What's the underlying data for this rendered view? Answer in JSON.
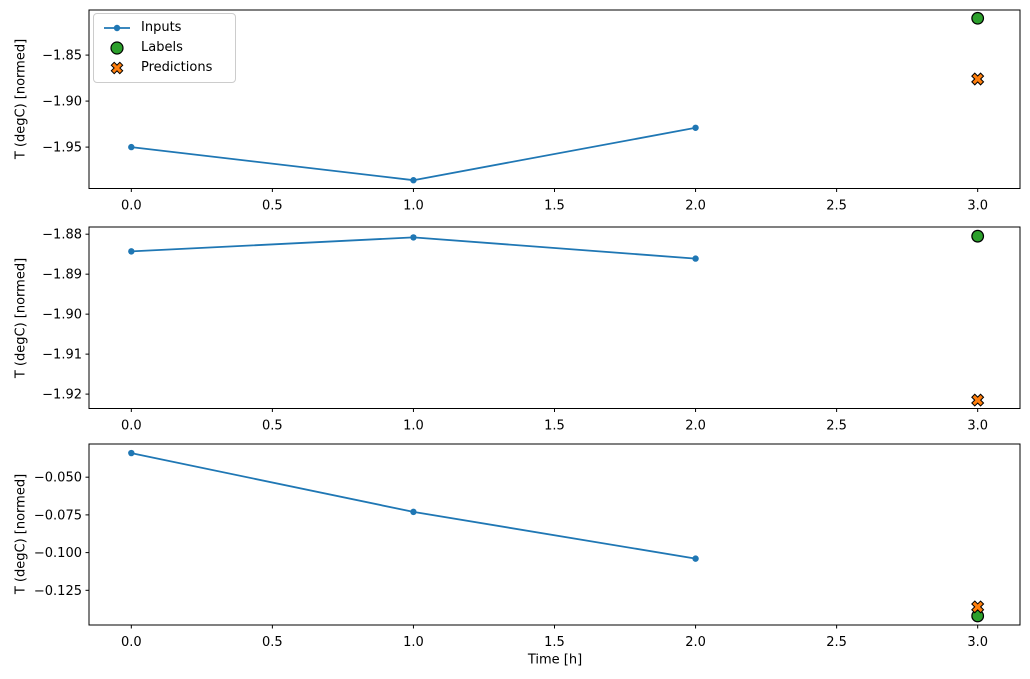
{
  "figure": {
    "background": "#ffffff",
    "spine_color": "#000000",
    "text_color": "#000000"
  },
  "legend": {
    "position": "upper-left",
    "items": [
      {
        "label": "Inputs",
        "marker": "line-dot",
        "color": "#1f77b4",
        "edge_color": "#1f77b4"
      },
      {
        "label": "Labels",
        "marker": "circle",
        "color": "#2ca02c",
        "edge_color": "#000000"
      },
      {
        "label": "Predictions",
        "marker": "x",
        "color": "#ff7f0e",
        "edge_color": "#000000"
      }
    ]
  },
  "chart_data": [
    {
      "type": "line",
      "title": "",
      "xlabel": "",
      "ylabel": "T (degC) [normed]",
      "grid": false,
      "legend_visible": true,
      "xlim": [
        -0.15,
        3.15
      ],
      "ylim": [
        -1.995,
        -1.801
      ],
      "xticks": {
        "values": [
          0.0,
          0.5,
          1.0,
          1.5,
          2.0,
          2.5,
          3.0
        ],
        "labels": [
          "0.0",
          "0.5",
          "1.0",
          "1.5",
          "2.0",
          "2.5",
          "3.0"
        ]
      },
      "yticks": {
        "values": [
          -1.85,
          -1.9,
          -1.95
        ],
        "labels": [
          "−1.85",
          "−1.90",
          "−1.95"
        ]
      },
      "series": [
        {
          "name": "Inputs",
          "kind": "line",
          "marker": "dot",
          "color": "#1f77b4",
          "x": [
            0,
            1,
            2
          ],
          "y": [
            -1.95,
            -1.986,
            -1.929
          ]
        },
        {
          "name": "Labels",
          "kind": "scatter",
          "marker": "circle",
          "color": "#2ca02c",
          "x": [
            3
          ],
          "y": [
            -1.81
          ]
        },
        {
          "name": "Predictions",
          "kind": "scatter",
          "marker": "x",
          "color": "#ff7f0e",
          "x": [
            3
          ],
          "y": [
            -1.876
          ]
        }
      ]
    },
    {
      "type": "line",
      "title": "",
      "xlabel": "",
      "ylabel": "T (degC) [normed]",
      "grid": false,
      "legend_visible": false,
      "xlim": [
        -0.15,
        3.15
      ],
      "ylim": [
        -1.9236,
        -1.8782
      ],
      "xticks": {
        "values": [
          0.0,
          0.5,
          1.0,
          1.5,
          2.0,
          2.5,
          3.0
        ],
        "labels": [
          "0.0",
          "0.5",
          "1.0",
          "1.5",
          "2.0",
          "2.5",
          "3.0"
        ]
      },
      "yticks": {
        "values": [
          -1.88,
          -1.89,
          -1.9,
          -1.91,
          -1.92
        ],
        "labels": [
          "−1.88",
          "−1.89",
          "−1.90",
          "−1.91",
          "−1.92"
        ]
      },
      "series": [
        {
          "name": "Inputs",
          "kind": "line",
          "marker": "dot",
          "color": "#1f77b4",
          "x": [
            0,
            1,
            2
          ],
          "y": [
            -1.8843,
            -1.8808,
            -1.8861
          ]
        },
        {
          "name": "Labels",
          "kind": "scatter",
          "marker": "circle",
          "color": "#2ca02c",
          "x": [
            3
          ],
          "y": [
            -1.8805
          ]
        },
        {
          "name": "Predictions",
          "kind": "scatter",
          "marker": "x",
          "color": "#ff7f0e",
          "x": [
            3
          ],
          "y": [
            -1.9215
          ]
        }
      ]
    },
    {
      "type": "line",
      "title": "",
      "xlabel": "Time [h]",
      "ylabel": "T (degC) [normed]",
      "grid": false,
      "legend_visible": false,
      "xlim": [
        -0.15,
        3.15
      ],
      "ylim": [
        -0.148,
        -0.028
      ],
      "xticks": {
        "values": [
          0.0,
          0.5,
          1.0,
          1.5,
          2.0,
          2.5,
          3.0
        ],
        "labels": [
          "0.0",
          "0.5",
          "1.0",
          "1.5",
          "2.0",
          "2.5",
          "3.0"
        ]
      },
      "yticks": {
        "values": [
          -0.05,
          -0.075,
          -0.1,
          -0.125
        ],
        "labels": [
          "−0.050",
          "−0.075",
          "−0.100",
          "−0.125"
        ]
      },
      "series": [
        {
          "name": "Inputs",
          "kind": "line",
          "marker": "dot",
          "color": "#1f77b4",
          "x": [
            0,
            1,
            2
          ],
          "y": [
            -0.034,
            -0.073,
            -0.104
          ]
        },
        {
          "name": "Labels",
          "kind": "scatter",
          "marker": "circle",
          "color": "#2ca02c",
          "x": [
            3
          ],
          "y": [
            -0.142
          ]
        },
        {
          "name": "Predictions",
          "kind": "scatter",
          "marker": "x",
          "color": "#ff7f0e",
          "x": [
            3
          ],
          "y": [
            -0.136
          ]
        }
      ]
    }
  ]
}
